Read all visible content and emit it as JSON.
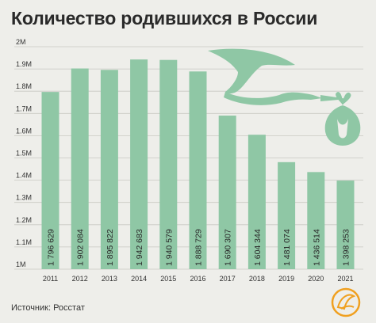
{
  "title": "Количество родившихся в России",
  "source": "Источник: Росстат",
  "colors": {
    "bar": "#8fc7a5",
    "grid": "#c8c8c2",
    "background": "#eeeeea",
    "text": "#333333",
    "stork": "#8fc7a5",
    "logo": "#f0a020"
  },
  "chart_data": {
    "type": "bar",
    "title": "Количество родившихся в России",
    "xlabel": "",
    "ylabel": "",
    "categories": [
      "2011",
      "2012",
      "2013",
      "2014",
      "2015",
      "2016",
      "2017",
      "2018",
      "2019",
      "2020",
      "2021"
    ],
    "values": [
      1796629,
      1902084,
      1895822,
      1942683,
      1940579,
      1888729,
      1690307,
      1604344,
      1481074,
      1436514,
      1398253
    ],
    "value_labels": [
      "1 796 629",
      "1 902 084",
      "1 895 822",
      "1 942 683",
      "1 940 579",
      "1 888 729",
      "1 690 307",
      "1 604 344",
      "1 481 074",
      "1 436 514",
      "1 398 253"
    ],
    "ylim": [
      1000000,
      2000000
    ],
    "yticks": [
      1000000,
      1100000,
      1200000,
      1300000,
      1400000,
      1500000,
      1600000,
      1700000,
      1800000,
      1900000,
      2000000
    ],
    "ytick_labels": [
      "1M",
      "1.1M",
      "1.2M",
      "1.3M",
      "1.4M",
      "1.5M",
      "1.6M",
      "1.7M",
      "1.8M",
      "1.9M",
      "2M"
    ],
    "grid": true,
    "value_label_orientation": "vertical, inside bar bottom",
    "legend": "none"
  }
}
